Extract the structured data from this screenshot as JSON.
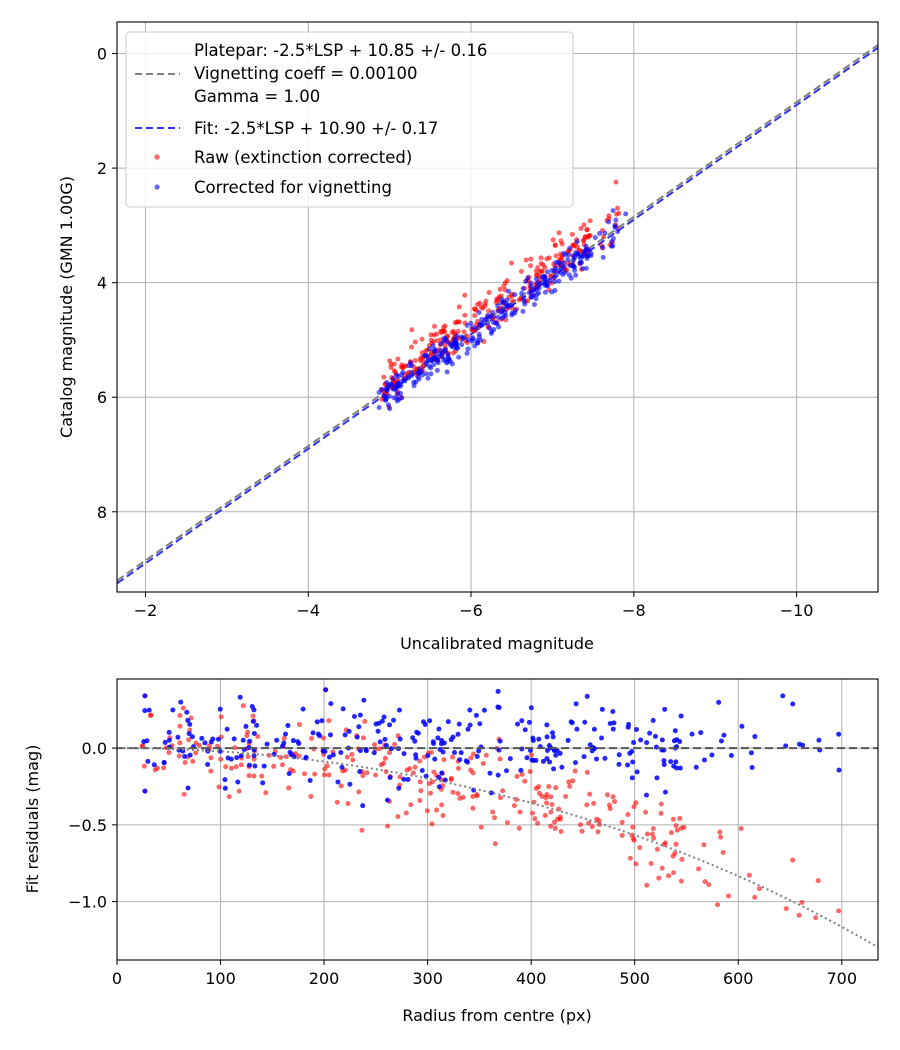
{
  "chart_data": [
    {
      "type": "scatter",
      "title": "",
      "xlabel": "Uncalibrated magnitude",
      "ylabel": "Catalog magnitude (GMN 1.00G)",
      "xlim": [
        -1.65,
        -11.0
      ],
      "ylim": [
        9.4,
        -0.55
      ],
      "x_ticks": [
        -2,
        -4,
        -6,
        -8,
        -10
      ],
      "x_tick_labels": [
        "−2",
        "−4",
        "−6",
        "−8",
        "−10"
      ],
      "y_ticks": [
        0,
        2,
        4,
        6,
        8
      ],
      "y_tick_labels": [
        "0",
        "2",
        "4",
        "6",
        "8"
      ],
      "grid": true,
      "legend_position": "top-left",
      "legend": [
        {
          "label": "Platepar: -2.5*LSP + 10.85 +/- 0.16",
          "style": "none"
        },
        {
          "label": "Vignetting coeff = 0.00100",
          "style": "dashed-gray"
        },
        {
          "label": "Gamma = 1.00",
          "style": "none"
        },
        {
          "label": "Fit: -2.5*LSP + 10.90 +/- 0.17",
          "style": "dashed-blue"
        },
        {
          "label": "Raw (extinction corrected)",
          "style": "dot-red"
        },
        {
          "label": "Corrected for vignetting",
          "style": "dot-blue"
        }
      ],
      "lines": [
        {
          "name": "Platepar",
          "slope_per_lsp": -2.5,
          "offset": 10.85,
          "color": "#808080",
          "dash": "dashed"
        },
        {
          "name": "Fit",
          "slope_per_lsp": -2.5,
          "offset": 10.9,
          "color": "#3333ee",
          "dash": "dashed"
        }
      ],
      "series_style": [
        {
          "name": "Raw (extinction corrected)",
          "color": "#ff0000",
          "opacity": 0.6
        },
        {
          "name": "Corrected for vignetting",
          "color": "#0000ff",
          "opacity": 0.6
        }
      ],
      "points_note": "approx. 300 stars per series, uncalibrated magnitude -4.9 to -7.9, catalog magnitude 6.3 to 2.7",
      "raw_sample": [
        [
          -5.1,
          5.9
        ],
        [
          -5.4,
          5.3
        ],
        [
          -5.8,
          5.0
        ],
        [
          -6.2,
          4.6
        ],
        [
          -6.5,
          4.2
        ],
        [
          -6.8,
          3.8
        ],
        [
          -7.1,
          3.5
        ],
        [
          -7.8,
          2.7
        ]
      ],
      "corrected_sample": [
        [
          -5.0,
          6.2
        ],
        [
          -5.3,
          5.8
        ],
        [
          -5.7,
          5.4
        ],
        [
          -6.1,
          4.9
        ],
        [
          -6.5,
          4.4
        ],
        [
          -6.9,
          3.9
        ],
        [
          -7.3,
          3.5
        ],
        [
          -7.9,
          2.8
        ]
      ]
    },
    {
      "type": "scatter",
      "title": "",
      "xlabel": "Radius from centre (px)",
      "ylabel": "Fit residuals (mag)",
      "xlim": [
        0,
        735
      ],
      "ylim": [
        -1.38,
        0.45
      ],
      "x_ticks": [
        0,
        100,
        200,
        300,
        400,
        500,
        600,
        700
      ],
      "x_tick_labels": [
        "0",
        "100",
        "200",
        "300",
        "400",
        "500",
        "600",
        "700"
      ],
      "y_ticks": [
        0.0,
        -0.5,
        -1.0
      ],
      "y_tick_labels": [
        "0.0",
        "−0.5",
        "−1.0"
      ],
      "grid": true,
      "reference_lines": [
        {
          "name": "zero",
          "y": 0,
          "color": "#555555",
          "dash": "dashed"
        },
        {
          "name": "vignetting model",
          "coeff": 0.001,
          "color": "#808080",
          "dash": "dotted"
        }
      ],
      "series_style": [
        {
          "name": "Raw (extinction corrected)",
          "color": "#ff0000",
          "opacity": 0.6
        },
        {
          "name": "Corrected for vignetting",
          "color": "#0000ff",
          "opacity": 0.85
        }
      ],
      "labeled_points": [
        {
          "series": "raw",
          "x": 580,
          "y": -1.02
        },
        {
          "series": "raw",
          "x": 697,
          "y": -1.06
        },
        {
          "series": "corrected",
          "x": 643,
          "y": 0.34
        },
        {
          "series": "corrected",
          "x": 697,
          "y": 0.09
        },
        {
          "series": "both",
          "x": 27,
          "y": 0.34
        },
        {
          "series": "both",
          "x": 27,
          "y": -0.28
        }
      ]
    }
  ]
}
